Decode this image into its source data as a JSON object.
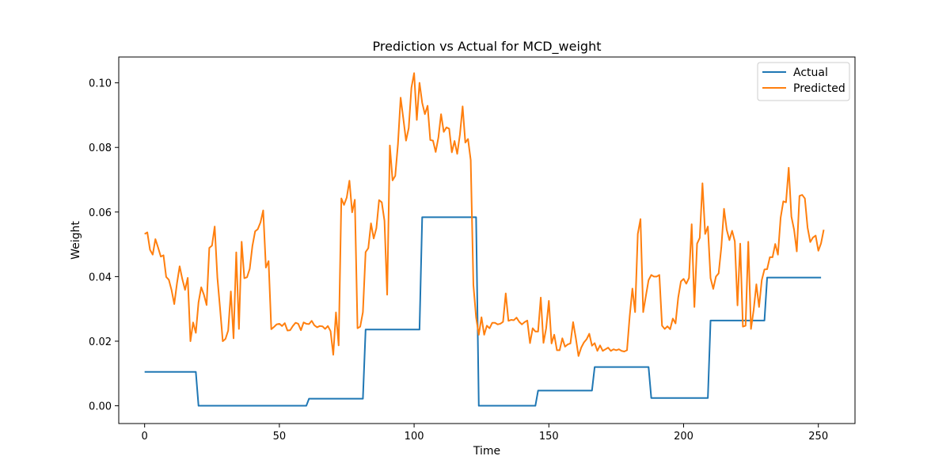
{
  "chart_data": {
    "type": "line",
    "title": "Prediction vs Actual for MCD_weight",
    "xlabel": "Time",
    "ylabel": "Weight",
    "xlim": [
      -9.6,
      263.6
    ],
    "ylim": [
      -0.0055,
      0.108
    ],
    "xticks": [
      0,
      50,
      100,
      150,
      200,
      250
    ],
    "yticks": [
      0.0,
      0.02,
      0.04,
      0.06,
      0.08,
      0.1
    ],
    "ytick_labels": [
      "0.00",
      "0.02",
      "0.04",
      "0.06",
      "0.08",
      "0.10"
    ],
    "grid": false,
    "legend_position": "top-right",
    "series": [
      {
        "name": "Actual",
        "color": "#1f77b4",
        "points": [
          [
            0,
            0.0105
          ],
          [
            19,
            0.0105
          ],
          [
            20,
            0.0
          ],
          [
            60,
            0.0
          ],
          [
            61,
            0.0022
          ],
          [
            81,
            0.0022
          ],
          [
            82,
            0.0236
          ],
          [
            102,
            0.0236
          ],
          [
            103,
            0.0584
          ],
          [
            123,
            0.0584
          ],
          [
            124,
            0.0
          ],
          [
            145,
            0.0
          ],
          [
            146,
            0.0047
          ],
          [
            166,
            0.0047
          ],
          [
            167,
            0.012
          ],
          [
            187,
            0.012
          ],
          [
            188,
            0.0024
          ],
          [
            209,
            0.0024
          ],
          [
            210,
            0.0264
          ],
          [
            230,
            0.0264
          ],
          [
            231,
            0.0397
          ],
          [
            251,
            0.0397
          ]
        ]
      },
      {
        "name": "Predicted",
        "color": "#ff7f0e",
        "values": [
          0.0532,
          0.0537,
          0.0483,
          0.0468,
          0.0516,
          0.049,
          0.0462,
          0.0466,
          0.0399,
          0.039,
          0.0358,
          0.0315,
          0.0379,
          0.0432,
          0.0392,
          0.0359,
          0.0396,
          0.02,
          0.0258,
          0.0226,
          0.032,
          0.0367,
          0.0344,
          0.0312,
          0.0489,
          0.0496,
          0.0555,
          0.0397,
          0.0301,
          0.02,
          0.0207,
          0.0233,
          0.0354,
          0.0209,
          0.0475,
          0.0238,
          0.0508,
          0.0395,
          0.0398,
          0.0424,
          0.0495,
          0.054,
          0.0547,
          0.0568,
          0.0605,
          0.0428,
          0.0448,
          0.0237,
          0.0244,
          0.0252,
          0.0254,
          0.0247,
          0.0256,
          0.0233,
          0.0234,
          0.0247,
          0.0257,
          0.0254,
          0.0234,
          0.0258,
          0.0254,
          0.0253,
          0.0263,
          0.0249,
          0.0243,
          0.0247,
          0.0246,
          0.0238,
          0.0247,
          0.0231,
          0.0158,
          0.0289,
          0.0187,
          0.0642,
          0.0622,
          0.0645,
          0.0697,
          0.0599,
          0.0638,
          0.024,
          0.0245,
          0.029,
          0.0476,
          0.0488,
          0.0565,
          0.0518,
          0.055,
          0.0637,
          0.063,
          0.0573,
          0.0344,
          0.0806,
          0.0698,
          0.0712,
          0.081,
          0.0954,
          0.0889,
          0.0821,
          0.086,
          0.0985,
          0.103,
          0.0885,
          0.1,
          0.0938,
          0.0903,
          0.0929,
          0.0823,
          0.0821,
          0.0786,
          0.083,
          0.0903,
          0.0848,
          0.0862,
          0.0858,
          0.0785,
          0.082,
          0.078,
          0.084,
          0.0927,
          0.0815,
          0.0826,
          0.0761,
          0.0374,
          0.0274,
          0.022,
          0.0274,
          0.022,
          0.0248,
          0.024,
          0.0257,
          0.0257,
          0.0252,
          0.0254,
          0.026,
          0.0348,
          0.0263,
          0.0266,
          0.0265,
          0.0273,
          0.026,
          0.0252,
          0.0259,
          0.0264,
          0.0194,
          0.024,
          0.023,
          0.023,
          0.0335,
          0.0195,
          0.024,
          0.0325,
          0.0193,
          0.022,
          0.0172,
          0.0172,
          0.0209,
          0.0183,
          0.019,
          0.0193,
          0.0259,
          0.021,
          0.0154,
          0.018,
          0.0196,
          0.0206,
          0.0223,
          0.0186,
          0.0194,
          0.017,
          0.0187,
          0.017,
          0.0175,
          0.018,
          0.017,
          0.0175,
          0.0172,
          0.0175,
          0.017,
          0.0168,
          0.0172,
          0.0278,
          0.0363,
          0.029,
          0.0532,
          0.0578,
          0.029,
          0.034,
          0.0389,
          0.0405,
          0.04,
          0.04,
          0.0405,
          0.0248,
          0.0238,
          0.0246,
          0.0237,
          0.027,
          0.0255,
          0.0335,
          0.0385,
          0.0393,
          0.0378,
          0.0396,
          0.0562,
          0.0306,
          0.0502,
          0.052,
          0.0689,
          0.0532,
          0.0555,
          0.0395,
          0.0362,
          0.04,
          0.041,
          0.0491,
          0.061,
          0.0545,
          0.0513,
          0.0542,
          0.0509,
          0.0311,
          0.0502,
          0.0245,
          0.0248,
          0.0508,
          0.0238,
          0.0297,
          0.0376,
          0.0306,
          0.0389,
          0.0422,
          0.0423,
          0.046,
          0.046,
          0.0501,
          0.0468,
          0.0582,
          0.0633,
          0.063,
          0.0737,
          0.0586,
          0.0545,
          0.0478,
          0.065,
          0.0653,
          0.0642,
          0.0552,
          0.0507,
          0.0521,
          0.0527,
          0.048,
          0.0503,
          0.0545
        ]
      }
    ]
  }
}
